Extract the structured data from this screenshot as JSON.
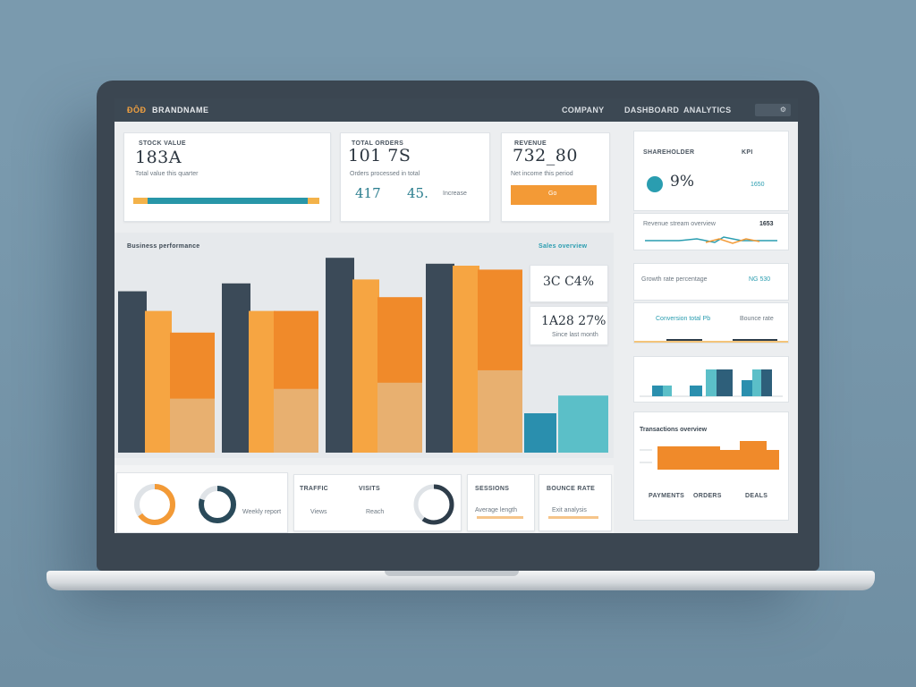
{
  "topbar": {
    "logo": "ĐÔĐ",
    "brand": "BRANDNAME",
    "nav": [
      "COMPANY",
      "DASHBOARD",
      "ANALYTICS"
    ]
  },
  "kpi_cards": [
    {
      "label": "STOCK VALUE",
      "value": "183A",
      "sub": "Total value this quarter",
      "progress": 0.93
    },
    {
      "label": "TOTAL ORDERS",
      "value": "101 7S",
      "sub": "Orders processed in total",
      "value2": "417",
      "value3": "45.",
      "sub2": "Increase"
    },
    {
      "label": "REVENUE",
      "value": "732_80",
      "sub": "Net income this period",
      "button": "Go"
    }
  ],
  "main_chart": {
    "title": "Business performance",
    "legend": "Sales overview",
    "stat1": "3C C4%",
    "stat2": "1A28 27%",
    "stat2_sub": "Since last month"
  },
  "chart_data": {
    "type": "bar",
    "series": [
      {
        "name": "",
        "values": [
          0.82,
          0.86,
          0.99,
          0.96
        ],
        "color": "#3b4a58"
      },
      {
        "name": "",
        "values": [
          0.72,
          0.72,
          0.88,
          0.95
        ],
        "color": "#f6a542"
      },
      {
        "name": "",
        "values": [
          0.61,
          0.72,
          0.79,
          0.93
        ],
        "color": "#f08a2a"
      }
    ],
    "extra_bars": [
      {
        "value": 0.2,
        "color": "#2a8fae"
      },
      {
        "value": 0.29,
        "color": "#5bbfc8"
      }
    ]
  },
  "bottom_cards": [
    {
      "label": "",
      "sub": "Weekly report",
      "ring1_pct": 0.65,
      "ring2_pct": 0.8
    },
    {
      "label": "TRAFFIC",
      "label2": "VISITS",
      "sub": "Views",
      "sub2": "Reach",
      "ring_pct": 0.6
    },
    {
      "label": "SESSIONS",
      "sub": "Average length"
    },
    {
      "label": "BOUNCE RATE",
      "sub": "Exit analysis"
    }
  ],
  "side_panel": {
    "card1": {
      "label": "SHAREHOLDER",
      "value": "9%",
      "right_label": "KPI",
      "right_value": "1650"
    },
    "card2": {
      "label": "Revenue stream overview",
      "value": "1653"
    },
    "card3": {
      "label": "Growth rate percentage",
      "value": "NG 530"
    },
    "card4": {
      "label": "Conversion total Pb",
      "value": "Bounce rate"
    },
    "card6": {
      "label": "Transactions overview",
      "cols": [
        "PAYMENTS",
        "ORDERS",
        "DEALS"
      ]
    }
  }
}
